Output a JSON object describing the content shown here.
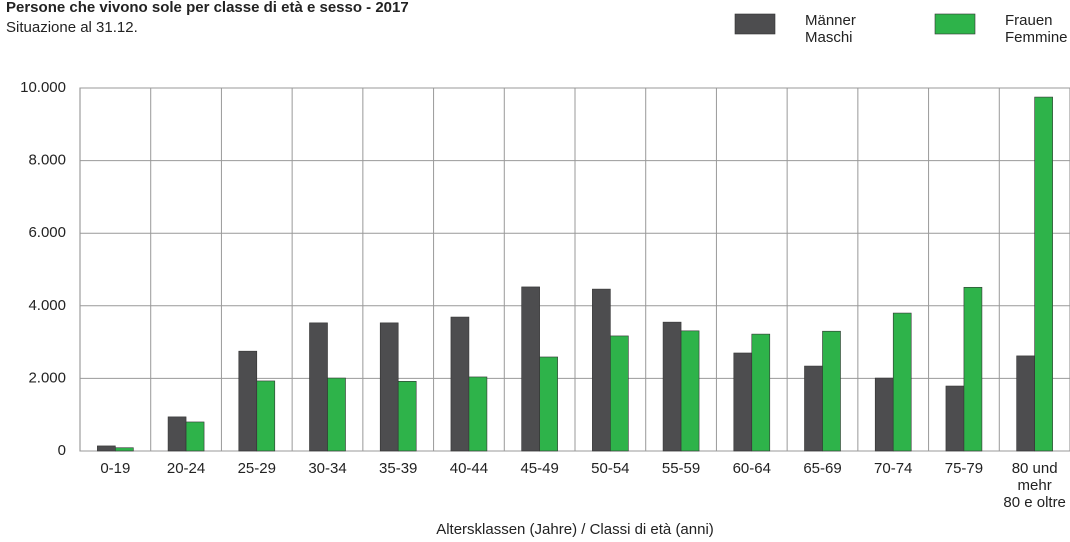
{
  "chart_data": {
    "type": "bar",
    "title": "Persone che vivono sole per classe di età e sesso - 2017",
    "subtitle": "Situazione al 31.12.",
    "x_label": "Altersklassen (Jahre) / Classi di età (anni)",
    "categories": [
      "0-19",
      "20-24",
      "25-29",
      "30-34",
      "35-39",
      "40-44",
      "45-49",
      "50-54",
      "55-59",
      "60-64",
      "65-69",
      "70-74",
      "75-79",
      "80 und\nmehr\n80 e oltre"
    ],
    "series": [
      {
        "name": "Männer\nMaschi",
        "color": "#4d4d4f",
        "values": [
          140,
          940,
          2750,
          3530,
          3530,
          3690,
          4520,
          4460,
          3550,
          2700,
          2340,
          2010,
          1790,
          2620
        ]
      },
      {
        "name": "Frauen\nFemmine",
        "color": "#2eb34a",
        "values": [
          90,
          800,
          1930,
          2010,
          1920,
          2040,
          2590,
          3170,
          3310,
          3220,
          3300,
          3800,
          4510,
          9750
        ]
      }
    ],
    "ylim": [
      0,
      10000
    ],
    "yticks": [
      0,
      {
        "value": 2000,
        "label": "2.000"
      },
      {
        "value": 4000,
        "label": "4.000"
      },
      {
        "value": 6000,
        "label": "6.000"
      },
      {
        "value": 8000,
        "label": "8.000"
      },
      {
        "value": 10000,
        "label": "10.000"
      }
    ],
    "grid": true,
    "legend": "top-right"
  }
}
